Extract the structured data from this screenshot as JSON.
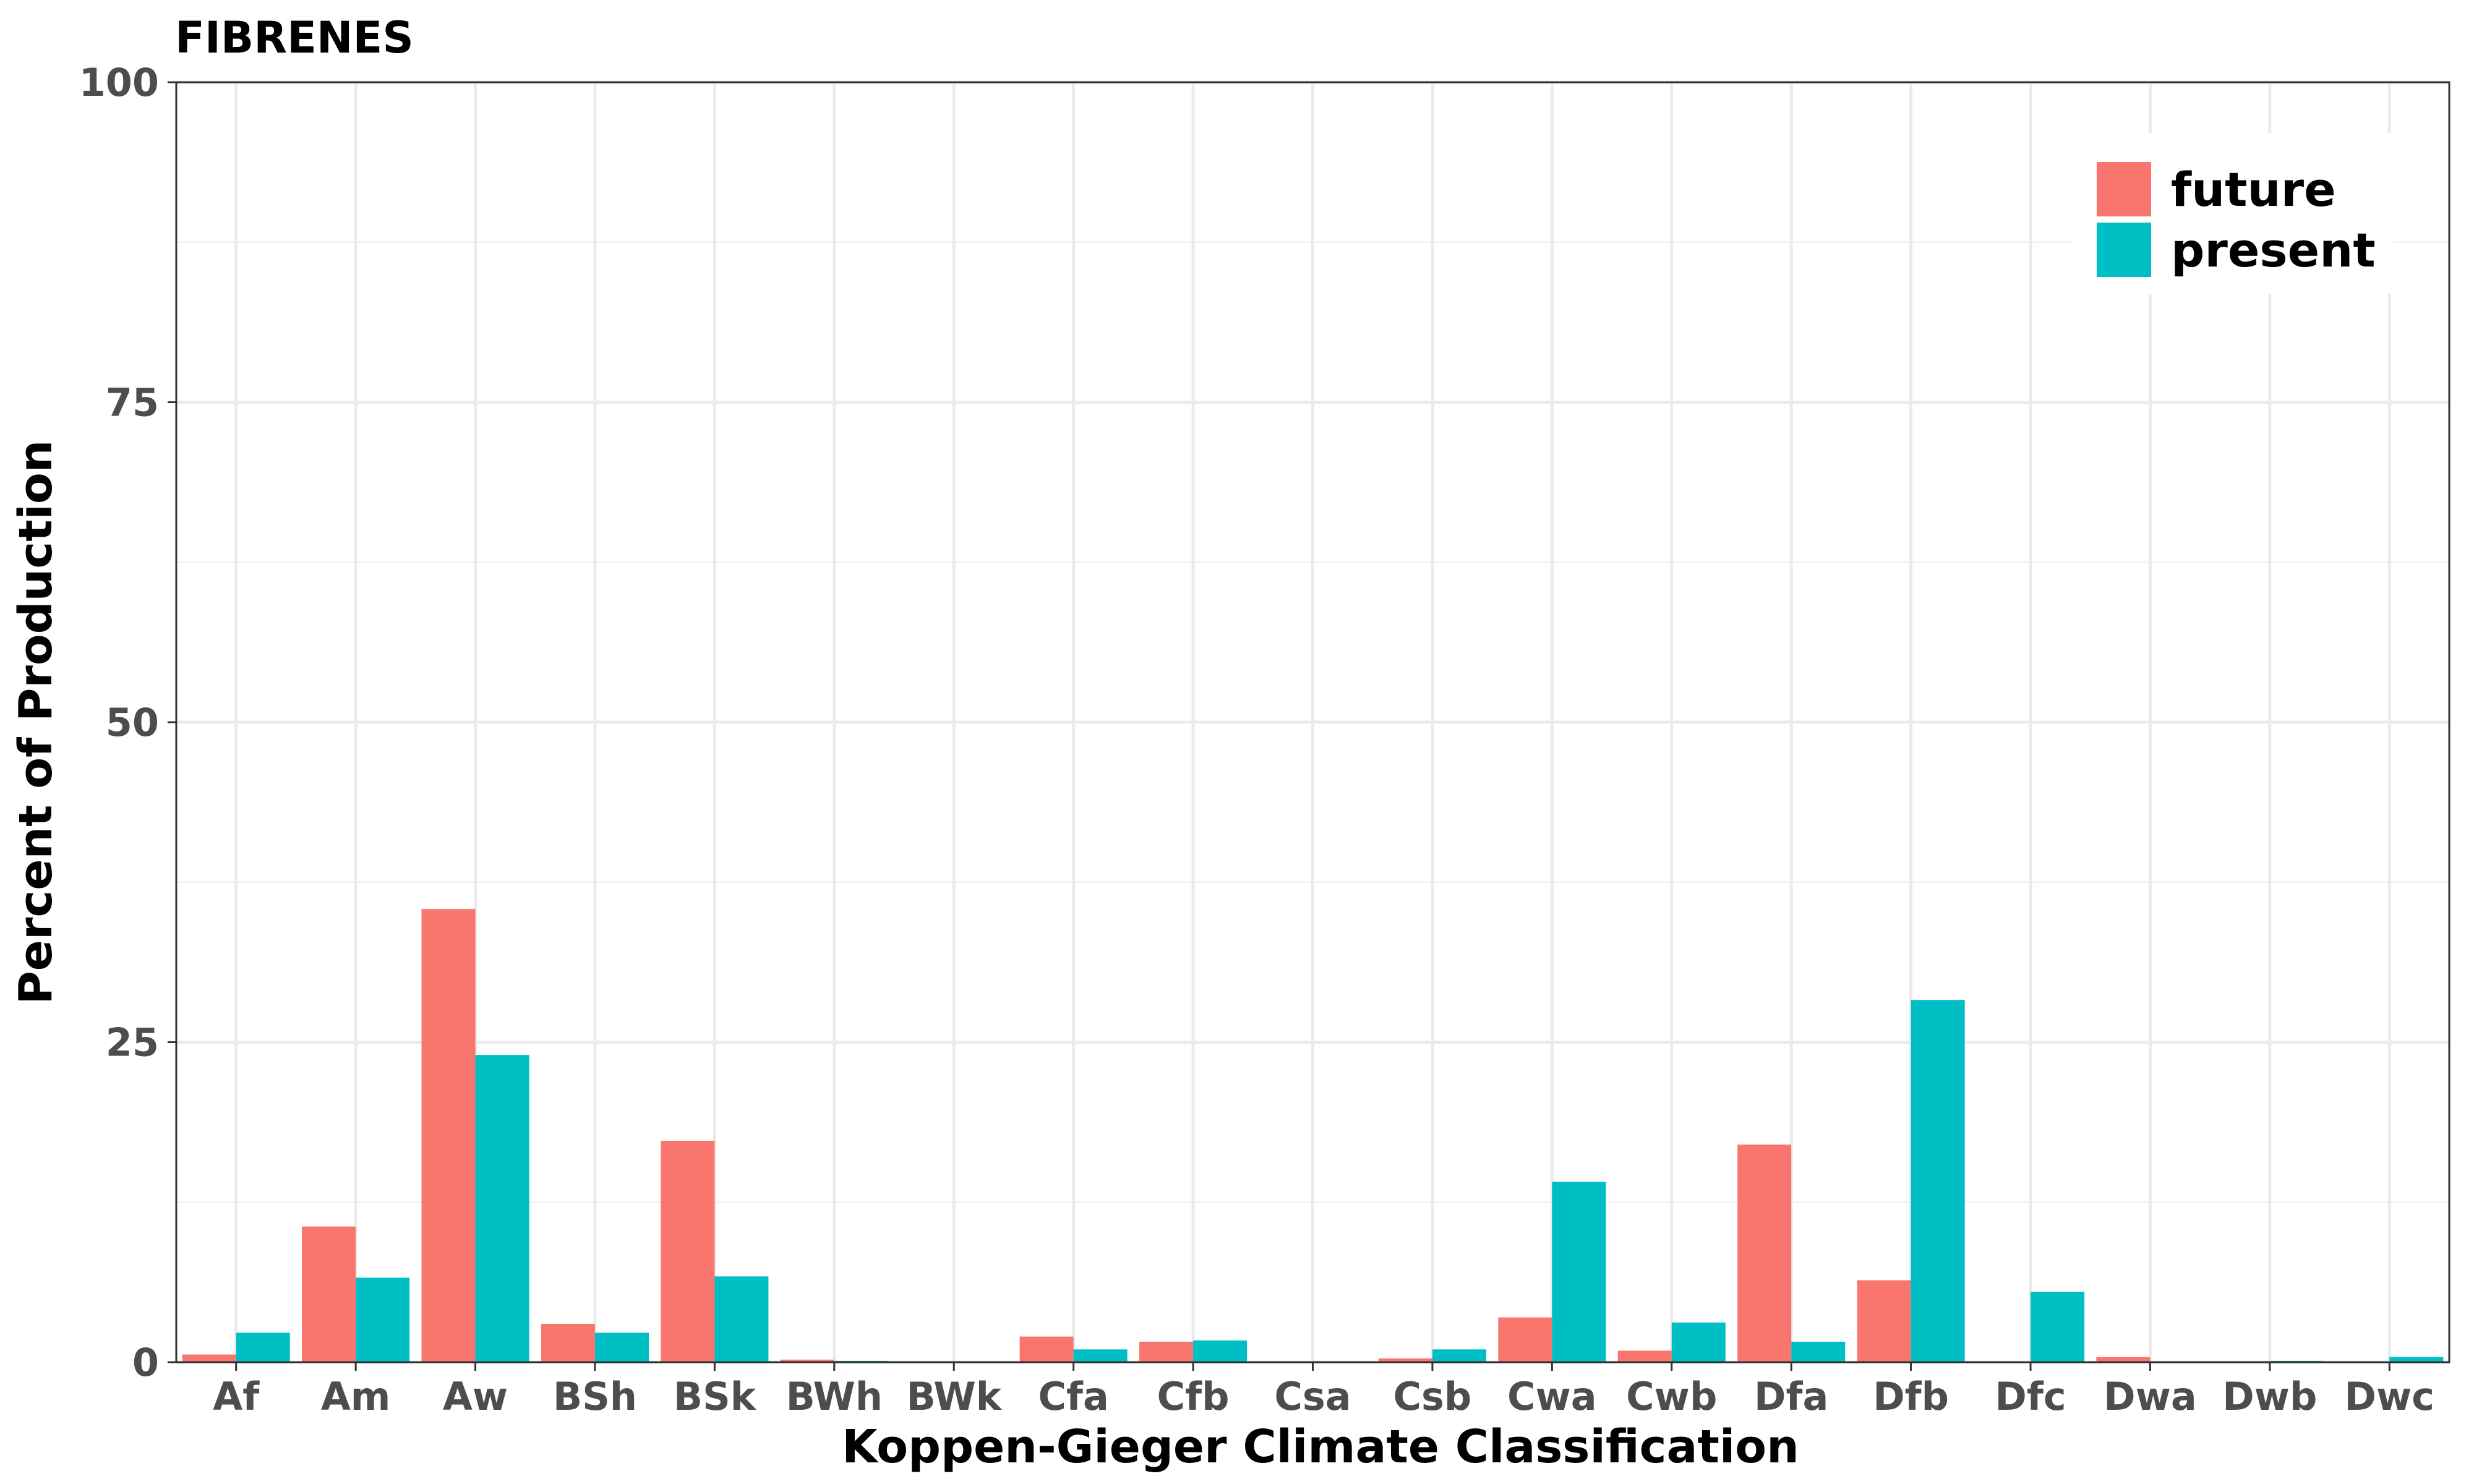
{
  "chart_data": {
    "type": "bar",
    "title": "FIBRENES",
    "xlabel": "Koppen-Gieger Climate Classification",
    "ylabel": "Percent of Production",
    "ylim": [
      0,
      100
    ],
    "yticks": [
      "0",
      "25",
      "50",
      "75",
      "100"
    ],
    "grid": true,
    "legend_position": "top-right",
    "categories": [
      "Af",
      "Am",
      "Aw",
      "BSh",
      "BSk",
      "BWh",
      "BWk",
      "Cfa",
      "Cfb",
      "Csa",
      "Csb",
      "Cwa",
      "Cwb",
      "Dfa",
      "Dfb",
      "Dfc",
      "Dwa",
      "Dwb",
      "Dwc"
    ],
    "series": [
      {
        "name": "future",
        "color": "#F8766D",
        "values": [
          0.6,
          10.6,
          35.4,
          3.0,
          17.3,
          0.2,
          0.0,
          2.0,
          1.6,
          0.0,
          0.3,
          3.5,
          0.9,
          17.0,
          6.4,
          0.0,
          0.4,
          0.0,
          0.0
        ]
      },
      {
        "name": "present",
        "color": "#00BFC4",
        "values": [
          2.3,
          6.6,
          24.0,
          2.3,
          6.7,
          0.1,
          0.0,
          1.0,
          1.7,
          0.0,
          1.0,
          14.1,
          3.1,
          1.6,
          28.3,
          5.5,
          0.0,
          0.1,
          0.4
        ]
      }
    ]
  }
}
